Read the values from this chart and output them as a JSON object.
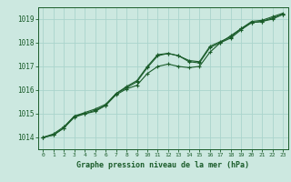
{
  "title": "Graphe pression niveau de la mer (hPa)",
  "x_labels": [
    0,
    1,
    2,
    3,
    4,
    5,
    6,
    7,
    8,
    9,
    10,
    11,
    12,
    13,
    14,
    15,
    16,
    17,
    18,
    19,
    20,
    21,
    22,
    23
  ],
  "xlim": [
    -0.5,
    23.5
  ],
  "ylim": [
    1013.5,
    1019.5
  ],
  "yticks": [
    1014,
    1015,
    1016,
    1017,
    1018,
    1019
  ],
  "background_color": "#cce8e0",
  "grid_color": "#aad4cc",
  "line_color": "#1a5c2a",
  "marker_color": "#1a5c2a",
  "title_color": "#1a5c2a",
  "series1": [
    1014.0,
    1014.1,
    1014.4,
    1014.9,
    1015.0,
    1015.1,
    1015.35,
    1015.85,
    1016.1,
    1016.35,
    1016.95,
    1017.45,
    1017.55,
    1017.45,
    1017.2,
    1017.15,
    1017.8,
    1018.0,
    1018.2,
    1018.55,
    1018.85,
    1018.9,
    1019.05,
    1019.2
  ],
  "series2": [
    1014.0,
    1014.1,
    1014.4,
    1014.85,
    1015.0,
    1015.15,
    1015.35,
    1015.8,
    1016.05,
    1016.2,
    1016.7,
    1017.0,
    1017.1,
    1017.0,
    1016.95,
    1017.0,
    1017.6,
    1018.0,
    1018.3,
    1018.6,
    1018.85,
    1018.9,
    1019.0,
    1019.2
  ],
  "series3": [
    1014.0,
    1014.15,
    1014.45,
    1014.9,
    1015.05,
    1015.2,
    1015.4,
    1015.85,
    1016.15,
    1016.4,
    1017.0,
    1017.5,
    1017.55,
    1017.45,
    1017.25,
    1017.2,
    1017.85,
    1018.05,
    1018.25,
    1018.6,
    1018.9,
    1018.95,
    1019.1,
    1019.25
  ]
}
